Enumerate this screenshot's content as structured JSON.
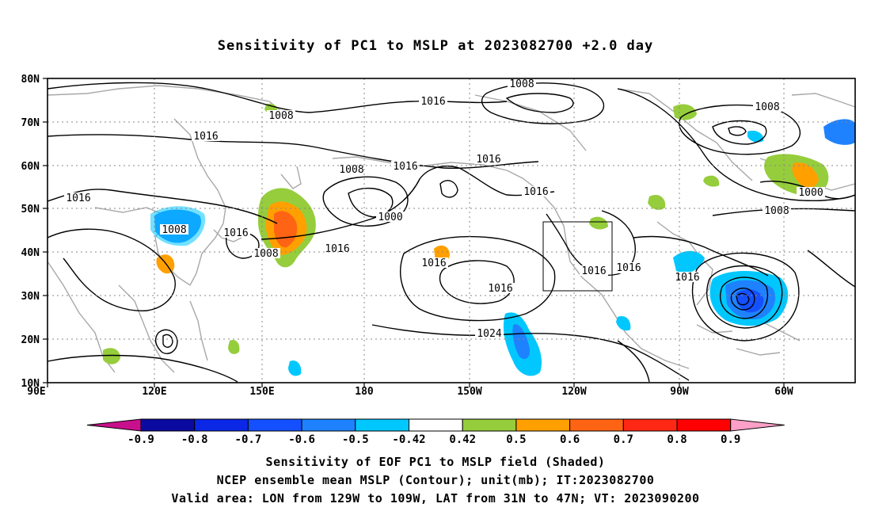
{
  "title": "Sensitivity of PC1 to MSLP at 2023082700 +2.0 day",
  "map": {
    "lat_labels": [
      "80N",
      "70N",
      "60N",
      "50N",
      "40N",
      "30N",
      "20N",
      "10N"
    ],
    "lon_labels": [
      "90E",
      "120E",
      "150E",
      "180",
      "150W",
      "120W",
      "90W",
      "60W"
    ],
    "extent": {
      "lon_min": 90,
      "lon_max": 330,
      "lat_min": 10,
      "lat_max": 80
    },
    "contour_labels": [
      "1008",
      "1016",
      "1016",
      "1008",
      "1016",
      "1016",
      "1016",
      "1000",
      "1016",
      "1008",
      "1008",
      "1016",
      "1008",
      "1016",
      "1016",
      "1016",
      "1024",
      "1016",
      "1008",
      "1016",
      "1008",
      "1000",
      "1008",
      "1016"
    ],
    "valid_box": {
      "lon_w": -129,
      "lon_e": -109,
      "lat_s": 31,
      "lat_n": 47
    }
  },
  "colorbar": {
    "labels": [
      "-0.9",
      "-0.8",
      "-0.7",
      "-0.6",
      "-0.5",
      "-0.42",
      "0.42",
      "0.5",
      "0.6",
      "0.7",
      "0.8",
      "0.9"
    ],
    "colors": [
      "#c8108c",
      "#0a0aa0",
      "#0a28e6",
      "#1450ff",
      "#1e82ff",
      "#00c8ff",
      "#ffffff",
      "#96cd3c",
      "#ffa000",
      "#ff6414",
      "#ff2814",
      "#ff0000",
      "#ffa0c8"
    ]
  },
  "caption": {
    "line1": "Sensitivity of EOF PC1 to MSLP field (Shaded)",
    "line2": "NCEP ensemble mean MSLP (Contour); unit(mb); IT:2023082700",
    "line3": "Valid area: LON from 129W to 109W, LAT from 31N to 47N; VT: 2023090200"
  }
}
